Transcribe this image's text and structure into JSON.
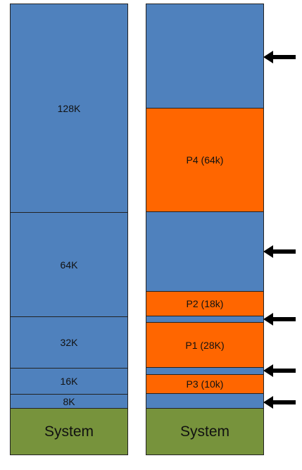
{
  "colors": {
    "free": "#4f81bd",
    "process": "#ff6600",
    "system": "#77933c"
  },
  "left_column": {
    "blocks": [
      {
        "label": "128K"
      },
      {
        "label": "64K"
      },
      {
        "label": "32K"
      },
      {
        "label": "16K"
      },
      {
        "label": "8K"
      },
      {
        "label": "System"
      }
    ]
  },
  "right_column": {
    "blocks": [
      {
        "label": "P4 (64k)"
      },
      {
        "label": "P2 (18k)"
      },
      {
        "label": "P1 (28K)"
      },
      {
        "label": "P3 (10k)"
      },
      {
        "label": "System"
      }
    ]
  },
  "arrows": [
    {
      "icon": "left-arrow-icon"
    },
    {
      "icon": "left-arrow-icon"
    },
    {
      "icon": "left-arrow-icon"
    },
    {
      "icon": "left-arrow-icon"
    },
    {
      "icon": "left-arrow-icon"
    }
  ]
}
